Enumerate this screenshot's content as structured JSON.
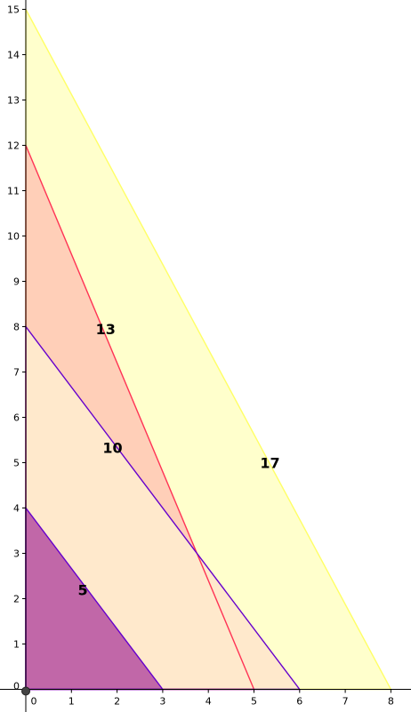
{
  "chart_data": {
    "type": "area",
    "x_ticks": [
      "0",
      "1",
      "2",
      "3",
      "4",
      "5",
      "6",
      "7",
      "8"
    ],
    "y_ticks": [
      "0",
      "1",
      "2",
      "3",
      "4",
      "5",
      "6",
      "7",
      "8",
      "9",
      "10",
      "11",
      "12",
      "13",
      "14",
      "15"
    ],
    "xlim": [
      0,
      8
    ],
    "ylim": [
      0,
      15
    ],
    "grid": false,
    "triangles": [
      {
        "label": "17",
        "legs": [
          8,
          15
        ],
        "fill": "#ffffcc",
        "stroke": "#ffff66",
        "label_at": [
          5.35,
          5.0
        ]
      },
      {
        "label": "13",
        "legs": [
          5,
          12
        ],
        "fill": "#ffcfb8",
        "stroke": "#ff3355",
        "label_at": [
          1.75,
          7.95
        ]
      },
      {
        "label": "10",
        "legs": [
          6,
          8
        ],
        "fill": "#ffe9cc",
        "stroke": "#6600cc",
        "label_at": [
          1.9,
          5.33
        ]
      },
      {
        "label": "5",
        "legs": [
          3,
          4
        ],
        "fill": "#c167a8",
        "stroke": "#6600cc",
        "label_at": [
          1.25,
          2.2
        ]
      }
    ],
    "axis_color": "#000000"
  }
}
